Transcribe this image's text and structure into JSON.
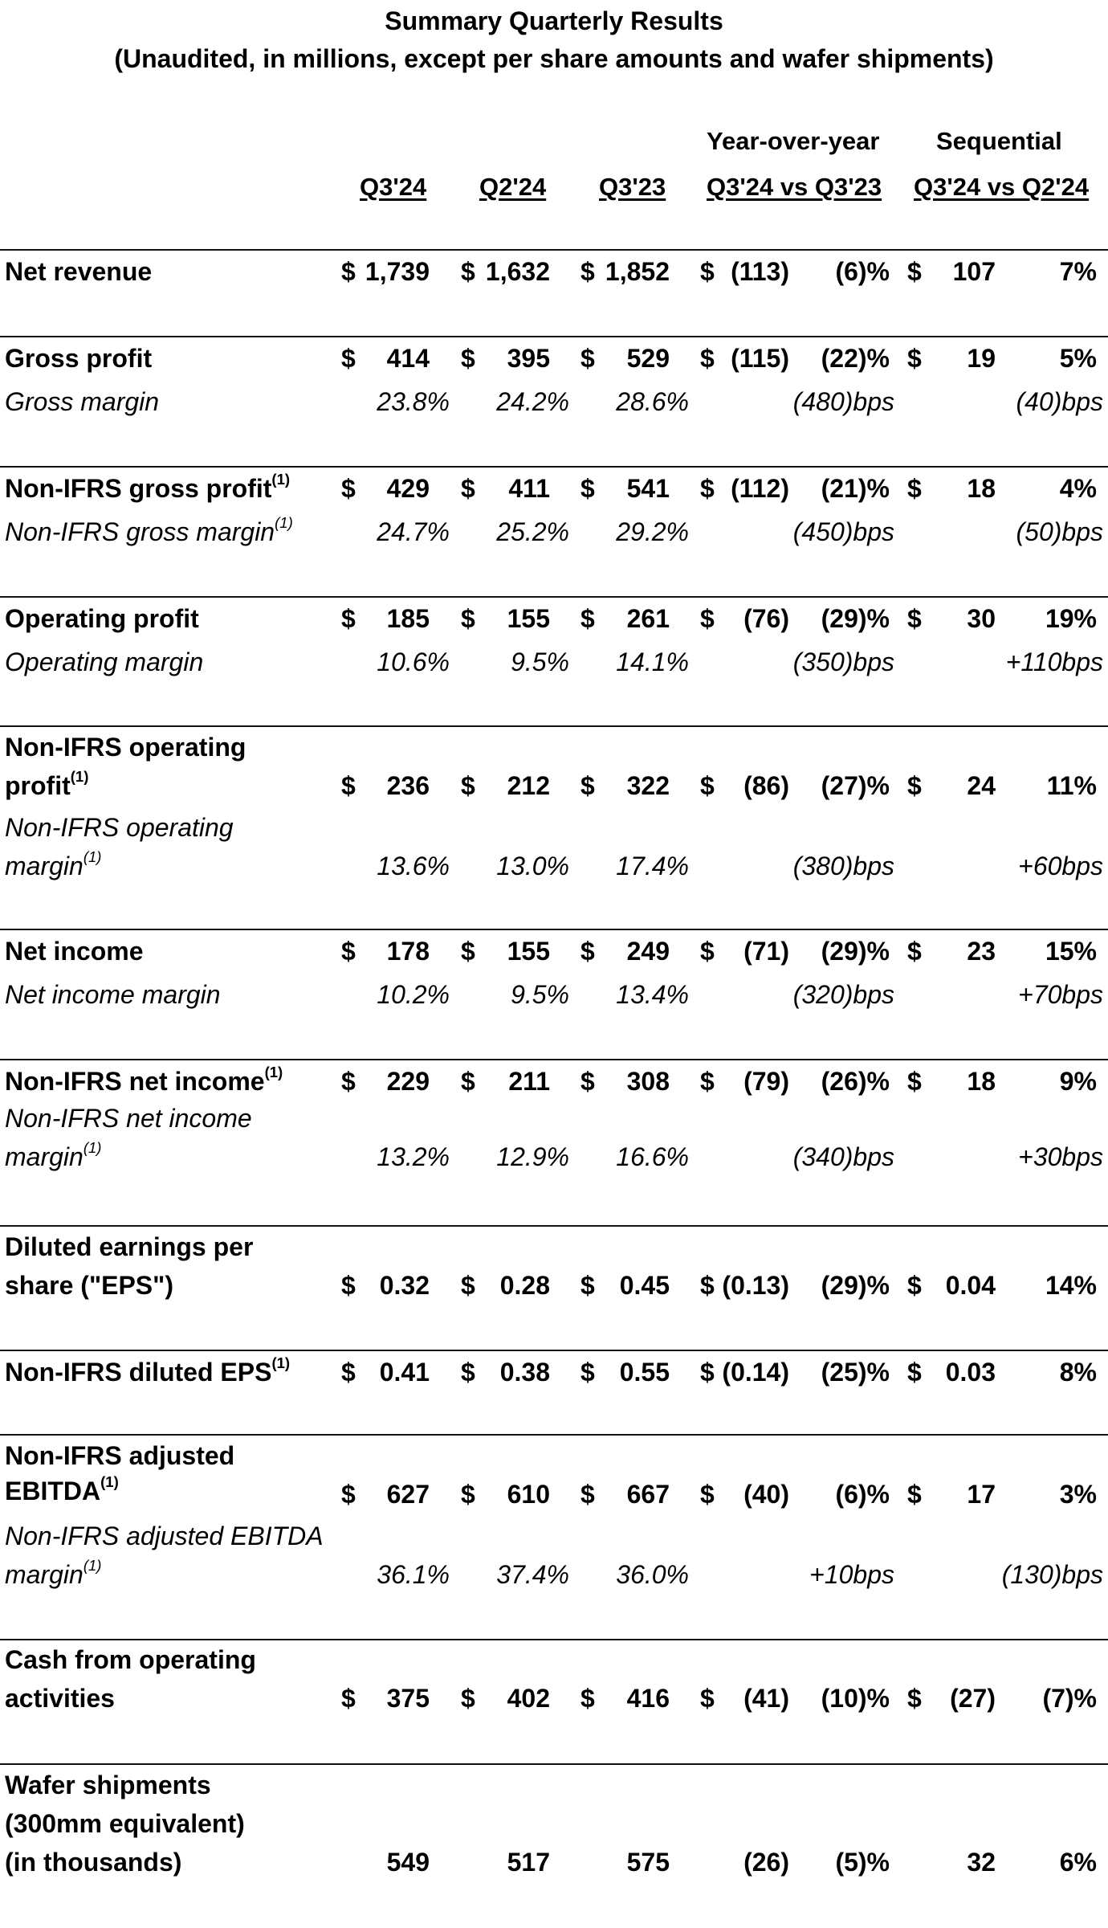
{
  "header": {
    "title": "Summary Quarterly Results",
    "subtitle": "(Unaudited, in millions, except per share amounts and wafer shipments)",
    "group_yoy": "Year-over-year",
    "group_seq": "Sequential",
    "col_q3_24": "Q3'24",
    "col_q2_24": "Q2'24",
    "col_q3_23": "Q3'23",
    "col_yoy": "Q3'24 vs Q3'23",
    "col_seq": "Q3'24 vs Q2'24"
  },
  "rows": {
    "net_revenue": {
      "label": "Net revenue",
      "d1": "$",
      "q3_24": "1,739",
      "d2": "$",
      "q2_24": "1,632",
      "d3": "$",
      "q3_23": "1,852",
      "d4": "$",
      "yoy_abs": "(113)",
      "yoy_pct": "(6)%",
      "d5": "$",
      "seq_abs": "107",
      "seq_pct": "7%"
    },
    "gross_profit": {
      "label": "Gross profit",
      "d1": "$",
      "q3_24": "414",
      "d2": "$",
      "q2_24": "395",
      "d3": "$",
      "q3_23": "529",
      "d4": "$",
      "yoy_abs": "(115)",
      "yoy_pct": "(22)%",
      "d5": "$",
      "seq_abs": "19",
      "seq_pct": "5%"
    },
    "gross_margin": {
      "label": "Gross margin",
      "q3_24": "23.8%",
      "q2_24": "24.2%",
      "q3_23": "28.6%",
      "yoy": "(480)bps",
      "seq": "(40)bps"
    },
    "nonifrs_gross_profit": {
      "label": "Non-IFRS gross profit",
      "note": "(1)",
      "d1": "$",
      "q3_24": "429",
      "d2": "$",
      "q2_24": "411",
      "d3": "$",
      "q3_23": "541",
      "d4": "$",
      "yoy_abs": "(112)",
      "yoy_pct": "(21)%",
      "d5": "$",
      "seq_abs": "18",
      "seq_pct": "4%"
    },
    "nonifrs_gross_margin": {
      "label": "Non-IFRS gross margin",
      "note": "(1)",
      "q3_24": "24.7%",
      "q2_24": "25.2%",
      "q3_23": "29.2%",
      "yoy": "(450)bps",
      "seq": "(50)bps"
    },
    "operating_profit": {
      "label": "Operating profit",
      "d1": "$",
      "q3_24": "185",
      "d2": "$",
      "q2_24": "155",
      "d3": "$",
      "q3_23": "261",
      "d4": "$",
      "yoy_abs": "(76)",
      "yoy_pct": "(29)%",
      "d5": "$",
      "seq_abs": "30",
      "seq_pct": "19%"
    },
    "operating_margin": {
      "label": "Operating margin",
      "q3_24": "10.6%",
      "q2_24": "9.5%",
      "q3_23": "14.1%",
      "yoy": "(350)bps",
      "seq": "+110bps"
    },
    "nonifrs_operating_profit": {
      "label_1": "Non-IFRS operating",
      "label_2": "profit",
      "note": "(1)",
      "d1": "$",
      "q3_24": "236",
      "d2": "$",
      "q2_24": "212",
      "d3": "$",
      "q3_23": "322",
      "d4": "$",
      "yoy_abs": "(86)",
      "yoy_pct": "(27)%",
      "d5": "$",
      "seq_abs": "24",
      "seq_pct": "11%"
    },
    "nonifrs_operating_margin": {
      "label_1": "Non-IFRS operating",
      "label_2": "margin",
      "note": "(1)",
      "q3_24": "13.6%",
      "q2_24": "13.0%",
      "q3_23": "17.4%",
      "yoy": "(380)bps",
      "seq": "+60bps"
    },
    "net_income": {
      "label": "Net income",
      "d1": "$",
      "q3_24": "178",
      "d2": "$",
      "q2_24": "155",
      "d3": "$",
      "q3_23": "249",
      "d4": "$",
      "yoy_abs": "(71)",
      "yoy_pct": "(29)%",
      "d5": "$",
      "seq_abs": "23",
      "seq_pct": "15%"
    },
    "net_income_margin": {
      "label": "Net income margin",
      "q3_24": "10.2%",
      "q2_24": "9.5%",
      "q3_23": "13.4%",
      "yoy": "(320)bps",
      "seq": "+70bps"
    },
    "nonifrs_net_income": {
      "label": "Non-IFRS net income",
      "note": "(1)",
      "d1": "$",
      "q3_24": "229",
      "d2": "$",
      "q2_24": "211",
      "d3": "$",
      "q3_23": "308",
      "d4": "$",
      "yoy_abs": "(79)",
      "yoy_pct": "(26)%",
      "d5": "$",
      "seq_abs": "18",
      "seq_pct": "9%"
    },
    "nonifrs_net_income_margin": {
      "label_1": "Non-IFRS net income",
      "label_2": "margin",
      "note": "(1)",
      "q3_24": "13.2%",
      "q2_24": "12.9%",
      "q3_23": "16.6%",
      "yoy": "(340)bps",
      "seq": "+30bps"
    },
    "diluted_eps": {
      "label_1": "Diluted earnings per",
      "label_2": "share (\"EPS\")",
      "d1": "$",
      "q3_24": "0.32",
      "d2": "$",
      "q2_24": "0.28",
      "d3": "$",
      "q3_23": "0.45",
      "d4": "$",
      "yoy_abs": "(0.13)",
      "yoy_pct": "(29)%",
      "d5": "$",
      "seq_abs": "0.04",
      "seq_pct": "14%"
    },
    "nonifrs_diluted_eps": {
      "label": "Non-IFRS diluted EPS",
      "note": "(1)",
      "d1": "$",
      "q3_24": "0.41",
      "d2": "$",
      "q2_24": "0.38",
      "d3": "$",
      "q3_23": "0.55",
      "d4": "$",
      "yoy_abs": "(0.14)",
      "yoy_pct": "(25)%",
      "d5": "$",
      "seq_abs": "0.03",
      "seq_pct": "8%"
    },
    "nonifrs_adj_ebitda": {
      "label_1": "Non-IFRS adjusted",
      "label_2": "EBITDA",
      "note": "(1)",
      "d1": "$",
      "q3_24": "627",
      "d2": "$",
      "q2_24": "610",
      "d3": "$",
      "q3_23": "667",
      "d4": "$",
      "yoy_abs": "(40)",
      "yoy_pct": "(6)%",
      "d5": "$",
      "seq_abs": "17",
      "seq_pct": "3%"
    },
    "nonifrs_adj_ebitda_margin": {
      "label_1": "Non-IFRS adjusted EBITDA",
      "label_2": "margin",
      "note": "(1)",
      "q3_24": "36.1%",
      "q2_24": "37.4%",
      "q3_23": "36.0%",
      "yoy": "+10bps",
      "seq": "(130)bps"
    },
    "cash_from_ops": {
      "label_1": "Cash from operating",
      "label_2": "activities",
      "d1": "$",
      "q3_24": "375",
      "d2": "$",
      "q2_24": "402",
      "d3": "$",
      "q3_23": "416",
      "d4": "$",
      "yoy_abs": "(41)",
      "yoy_pct": "(10)%",
      "d5": "$",
      "seq_abs": "(27)",
      "seq_pct": "(7)%"
    },
    "wafer_shipments": {
      "label_1": "Wafer shipments",
      "label_2": "(300mm equivalent)",
      "label_3": "(in thousands)",
      "q3_24": "549",
      "q2_24": "517",
      "q3_23": "575",
      "yoy_abs": "(26)",
      "yoy_pct": "(5)%",
      "seq_abs": "32",
      "seq_pct": "6%"
    }
  }
}
